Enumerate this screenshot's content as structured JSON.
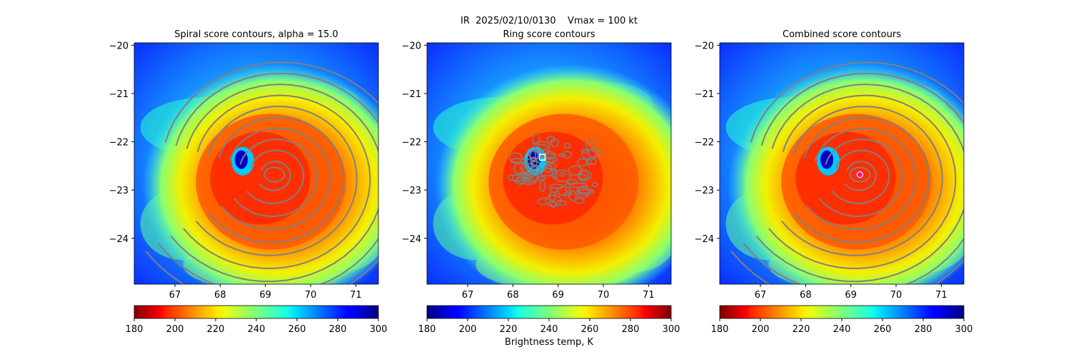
{
  "figure": {
    "suptitle": "IR  2025/02/10/0130    Vmax = 100 kt",
    "colorbar_label": "Brightness temp, K"
  },
  "chart_data": [
    {
      "type": "heatmap",
      "title": "Spiral score contours, alpha = 15.0",
      "xlim": [
        66.1,
        71.5
      ],
      "ylim": [
        -24.95,
        -19.95
      ],
      "xticks": [
        67,
        68,
        69,
        70,
        71
      ],
      "yticks": [
        -20,
        -21,
        -22,
        -23,
        -24
      ],
      "colorbar": {
        "colormap": "jet",
        "range": [
          180,
          300
        ],
        "ticks": [
          180,
          200,
          220,
          240,
          260,
          280,
          300
        ]
      },
      "contours": "spiral",
      "marker": null
    },
    {
      "type": "heatmap",
      "title": "Ring score contours",
      "xlim": [
        66.1,
        71.5
      ],
      "ylim": [
        -24.95,
        -19.95
      ],
      "xticks": [
        67,
        68,
        69,
        70,
        71
      ],
      "yticks": [
        -20,
        -21,
        -22,
        -23,
        -24
      ],
      "colorbar": {
        "colormap": "jet_r",
        "range": [
          180,
          300
        ],
        "ticks": [
          180,
          200,
          220,
          240,
          260,
          280,
          300
        ]
      },
      "contours": "ring",
      "marker": {
        "shape": "square",
        "lon": 68.65,
        "lat": -22.32
      }
    },
    {
      "type": "heatmap",
      "title": "Combined score contours",
      "xlim": [
        66.1,
        71.5
      ],
      "ylim": [
        -24.95,
        -19.95
      ],
      "xticks": [
        67,
        68,
        69,
        70,
        71
      ],
      "yticks": [
        -20,
        -21,
        -22,
        -23,
        -24
      ],
      "colorbar": {
        "colormap": "jet",
        "range": [
          180,
          300
        ],
        "ticks": [
          180,
          200,
          220,
          240,
          260,
          280,
          300
        ]
      },
      "contours": "spiral",
      "marker": {
        "shape": "circle",
        "lon": 69.2,
        "lat": -22.68
      }
    }
  ],
  "storm": {
    "eye_lon": 68.5,
    "eye_lat": -22.4,
    "eye_temp_k": 262,
    "core_temp_k": 195,
    "spiral_center_lon": 69.2,
    "spiral_center_lat": -22.68
  }
}
